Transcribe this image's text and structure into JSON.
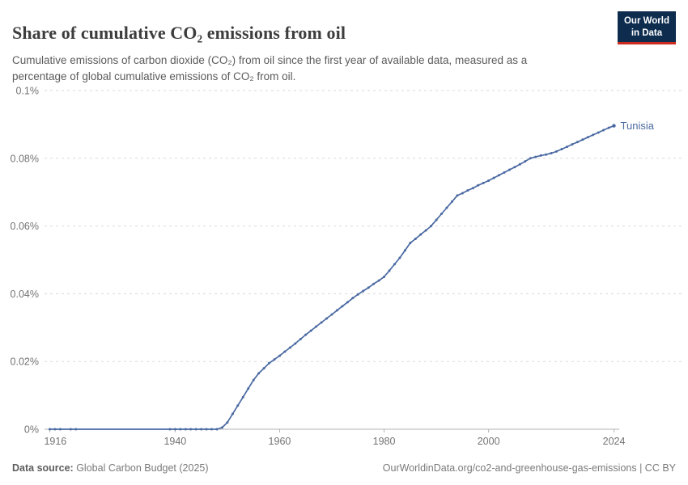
{
  "header": {
    "title": "Share of cumulative CO₂ emissions from oil",
    "subtitle": "Cumulative emissions of carbon dioxide (CO₂) from oil since the first year of available data, measured as a percentage of global cumulative emissions of CO₂ from oil.",
    "logo": {
      "line1": "Our World",
      "line2": "in Data"
    }
  },
  "colors": {
    "line": "#4a69a2",
    "entity_label": "#4a69a2",
    "gridline": "#dadada",
    "axis": "#b3b3b3",
    "tick_text": "#737373",
    "title_text": "#3d3d3d",
    "subtitle_text": "#5b5b5b",
    "logo_bg": "#0d2c4e",
    "logo_accent": "#cd2b20"
  },
  "chart_data": {
    "type": "line",
    "title": "Share of cumulative CO₂ emissions from oil",
    "xlabel": "",
    "ylabel": "",
    "grid": "horizontal-dashed",
    "legend_position": "end-of-line-label",
    "xlim": [
      1915,
      2025
    ],
    "ylim": [
      0,
      0.1
    ],
    "x_ticks": [
      1916,
      1940,
      1960,
      1980,
      2000,
      2024
    ],
    "y_ticks": [
      {
        "value": 0,
        "label": "0%"
      },
      {
        "value": 0.02,
        "label": "0.02%"
      },
      {
        "value": 0.04,
        "label": "0.04%"
      },
      {
        "value": 0.06,
        "label": "0.06%"
      },
      {
        "value": 0.08,
        "label": "0.08%"
      },
      {
        "value": 0.1,
        "label": "0.1%"
      }
    ],
    "unit": "%",
    "series": [
      {
        "name": "Tunisia",
        "points": [
          [
            1916,
            0
          ],
          [
            1917,
            0
          ],
          [
            1918,
            0
          ],
          [
            1920,
            0
          ],
          [
            1921,
            0
          ],
          [
            1939,
            0
          ],
          [
            1940,
            0
          ],
          [
            1941,
            0
          ],
          [
            1942,
            0
          ],
          [
            1943,
            0
          ],
          [
            1944,
            0
          ],
          [
            1945,
            0
          ],
          [
            1946,
            0
          ],
          [
            1947,
            0
          ],
          [
            1948,
            0
          ],
          [
            1949,
            0.0005
          ],
          [
            1950,
            0.002
          ],
          [
            1951,
            0.0045
          ],
          [
            1952,
            0.007
          ],
          [
            1953,
            0.0095
          ],
          [
            1954,
            0.012
          ],
          [
            1955,
            0.0145
          ],
          [
            1956,
            0.0165
          ],
          [
            1957,
            0.018
          ],
          [
            1958,
            0.0195
          ],
          [
            1959,
            0.0206
          ],
          [
            1960,
            0.0217
          ],
          [
            1961,
            0.0229
          ],
          [
            1962,
            0.0241
          ],
          [
            1963,
            0.0253
          ],
          [
            1964,
            0.0266
          ],
          [
            1965,
            0.0279
          ],
          [
            1966,
            0.0291
          ],
          [
            1967,
            0.0303
          ],
          [
            1968,
            0.0315
          ],
          [
            1969,
            0.0327
          ],
          [
            1970,
            0.0339
          ],
          [
            1971,
            0.0351
          ],
          [
            1972,
            0.0363
          ],
          [
            1973,
            0.0375
          ],
          [
            1974,
            0.0387
          ],
          [
            1975,
            0.0398
          ],
          [
            1976,
            0.0408
          ],
          [
            1977,
            0.0418
          ],
          [
            1978,
            0.0429
          ],
          [
            1979,
            0.0439
          ],
          [
            1980,
            0.045
          ],
          [
            1981,
            0.0468
          ],
          [
            1982,
            0.0487
          ],
          [
            1983,
            0.0506
          ],
          [
            1984,
            0.0528
          ],
          [
            1985,
            0.055
          ],
          [
            1986,
            0.0562
          ],
          [
            1987,
            0.0575
          ],
          [
            1988,
            0.0587
          ],
          [
            1989,
            0.06
          ],
          [
            1990,
            0.0618
          ],
          [
            1991,
            0.0636
          ],
          [
            1992,
            0.0654
          ],
          [
            1993,
            0.0672
          ],
          [
            1994,
            0.069
          ],
          [
            1995,
            0.0697
          ],
          [
            1996,
            0.0705
          ],
          [
            1997,
            0.0712
          ],
          [
            1998,
            0.072
          ],
          [
            1999,
            0.0727
          ],
          [
            2000,
            0.0734
          ],
          [
            2001,
            0.0742
          ],
          [
            2002,
            0.075
          ],
          [
            2003,
            0.0758
          ],
          [
            2004,
            0.0766
          ],
          [
            2005,
            0.0774
          ],
          [
            2006,
            0.0782
          ],
          [
            2007,
            0.0791
          ],
          [
            2008,
            0.08
          ],
          [
            2009,
            0.0804
          ],
          [
            2010,
            0.0808
          ],
          [
            2011,
            0.0811
          ],
          [
            2012,
            0.0815
          ],
          [
            2013,
            0.082
          ],
          [
            2014,
            0.0827
          ],
          [
            2015,
            0.0834
          ],
          [
            2016,
            0.0841
          ],
          [
            2017,
            0.0848
          ],
          [
            2018,
            0.0855
          ],
          [
            2019,
            0.0862
          ],
          [
            2020,
            0.0869
          ],
          [
            2021,
            0.0876
          ],
          [
            2022,
            0.0883
          ],
          [
            2023,
            0.089
          ],
          [
            2024,
            0.0896
          ]
        ]
      }
    ]
  },
  "footer": {
    "source_label": "Data source:",
    "source_text": " Global Carbon Budget (2025)",
    "link_text": "OurWorldinData.org/co2-and-greenhouse-gas-emissions | CC BY"
  }
}
